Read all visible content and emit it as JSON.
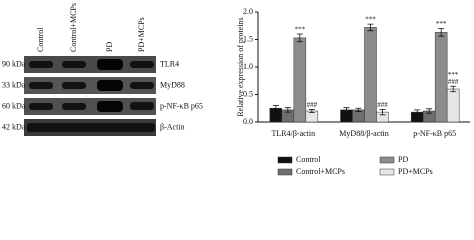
{
  "blot": {
    "lanes": [
      "Control",
      "Control+MCPs",
      "PD",
      "PD+MCPs"
    ],
    "rows": [
      {
        "size": "90 kDa",
        "protein": "TLR4"
      },
      {
        "size": "33 kDa",
        "protein": "MyD88"
      },
      {
        "size": "60 kDa",
        "protein": "p-NF-κB p65"
      },
      {
        "size": "42 kDa",
        "protein": "β-Actin"
      }
    ]
  },
  "chart_data": {
    "type": "bar",
    "y_label": "Relative expression of proteins",
    "categories": [
      "TLR4/β-actin",
      "MyD88/β-actin",
      "p-NF-κB p65"
    ],
    "series": [
      {
        "name": "Control",
        "color": "#111111",
        "values": [
          0.25,
          0.22,
          0.18
        ],
        "errors": [
          0.05,
          0.04,
          0.04
        ]
      },
      {
        "name": "Control+MCPs",
        "color": "#6e6e6e",
        "values": [
          0.22,
          0.22,
          0.2
        ],
        "errors": [
          0.04,
          0.03,
          0.04
        ]
      },
      {
        "name": "PD",
        "color": "#8c8c8c",
        "values": [
          1.53,
          1.72,
          1.63
        ],
        "errors": [
          0.07,
          0.06,
          0.07
        ],
        "labels": [
          [
            "***"
          ],
          [
            "***"
          ],
          [
            "***"
          ]
        ]
      },
      {
        "name": "PD+MCPs",
        "color": "#e6e6e6",
        "values": [
          0.2,
          0.18,
          0.6
        ],
        "errors": [
          0.03,
          0.05,
          0.05
        ],
        "labels": [
          [
            "###"
          ],
          [
            "###"
          ],
          [
            "***",
            "###"
          ]
        ]
      }
    ],
    "ylim": [
      0,
      2.0
    ],
    "yticks": [
      {
        "value": 0,
        "label": "0.0"
      },
      0.5,
      {
        "value": 1,
        "label": "1.0"
      },
      1.5,
      {
        "value": 2,
        "label": "2.0"
      }
    ],
    "legend": "bottom"
  }
}
